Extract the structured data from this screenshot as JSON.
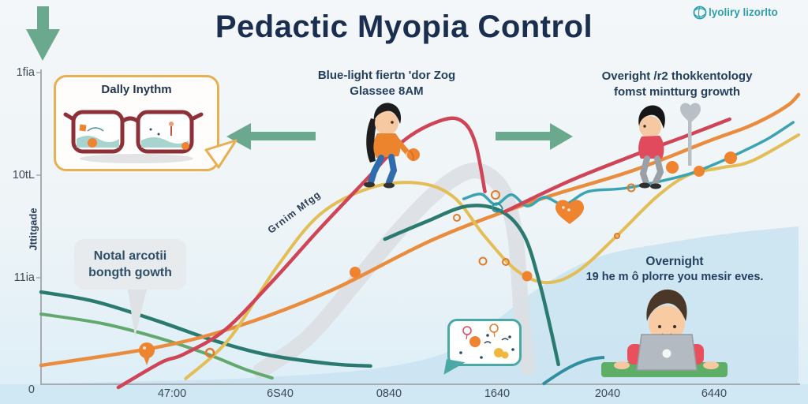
{
  "title": "Pedactic Myopia Control",
  "logo": {
    "text": "lyoliry lizorlto",
    "color": "#2f9fad"
  },
  "callout": {
    "title": "Dally Inythm"
  },
  "notes": {
    "center": [
      "Blue-light fiertn 'dor Zog",
      "Glassee 8AM"
    ],
    "right": [
      "Overight /r2 thokkentology",
      "fomst mintturg growth"
    ],
    "bubble": [
      "Notal arcotii",
      "bongth gowth"
    ],
    "overnight": [
      "Overnight",
      "19 he m ô plorre you mesir eves."
    ],
    "diagonal": "Grnim Mfgg"
  },
  "colors": {
    "accent_navy": "#1a2e4f",
    "arrow_green": "#6ba98e",
    "logo_teal": "#2f9fad",
    "callout_border": "#e7b052",
    "area_blue": "#cbe3f1"
  },
  "chart_data": {
    "type": "line",
    "title": "Pedactic Myopia Control",
    "y_axis_label": "Jttitgade",
    "y_ticks": [
      "1fia",
      "10tL",
      "11ia",
      "0"
    ],
    "x_ticks": [
      "47:00",
      "6S40",
      "0840",
      "1640",
      "2040",
      "6440"
    ],
    "grid": false,
    "legend": "none",
    "note": "x is fraction of plot width (0-1), value is percent of plot height above baseline (0-100)",
    "area": {
      "color": "#cbe3f1",
      "opacity": 0.9,
      "points": [
        [
          0,
          0
        ],
        [
          0.102,
          0.8
        ],
        [
          0.258,
          1.8
        ],
        [
          0.435,
          4.8
        ],
        [
          0.54,
          10.5
        ],
        [
          0.602,
          20.6
        ],
        [
          0.665,
          31.8
        ],
        [
          0.738,
          40.6
        ],
        [
          0.831,
          45.1
        ],
        [
          0.915,
          48.1
        ],
        [
          1,
          50.1
        ]
      ]
    },
    "series": [
      {
        "name": "gray-road-band",
        "color": "#dcdfe2",
        "width": 20,
        "opacity": 0.9,
        "points": [
          [
            0.29,
            4.3
          ],
          [
            0.352,
            14.8
          ],
          [
            0.415,
            32.3
          ],
          [
            0.467,
            47.4
          ],
          [
            0.514,
            59.4
          ],
          [
            0.555,
            66.7
          ],
          [
            0.583,
            67.4
          ],
          [
            0.61,
            61.4
          ],
          [
            0.625,
            48.9
          ],
          [
            0.631,
            33.8
          ],
          [
            0.635,
            18.8
          ],
          [
            0.642,
            5.5
          ]
        ]
      },
      {
        "name": "green-curve",
        "color": "#63a86e",
        "width": 4,
        "points": [
          [
            0,
            22.3
          ],
          [
            0.081,
            19.3
          ],
          [
            0.154,
            14.8
          ],
          [
            0.217,
            9.8
          ],
          [
            0.269,
            4.8
          ],
          [
            0.305,
            2.0
          ]
        ]
      },
      {
        "name": "dark-teal-left",
        "color": "#2a7a70",
        "width": 4.5,
        "points": [
          [
            0,
            29.3
          ],
          [
            0.071,
            26.3
          ],
          [
            0.154,
            20.1
          ],
          [
            0.227,
            14.0
          ],
          [
            0.3,
            9.3
          ],
          [
            0.383,
            6.5
          ],
          [
            0.435,
            5.8
          ]
        ]
      },
      {
        "name": "orange-line",
        "color": "#ea8c3e",
        "width": 4.5,
        "points": [
          [
            0,
            6.0
          ],
          [
            0.154,
            11.8
          ],
          [
            0.258,
            18.3
          ],
          [
            0.383,
            29.8
          ],
          [
            0.519,
            46.1
          ],
          [
            0.654,
            58.4
          ],
          [
            0.779,
            67.7
          ],
          [
            0.883,
            77.4
          ],
          [
            0.93,
            81.5
          ],
          [
            0.961,
            85.0
          ],
          [
            0.988,
            89.0
          ],
          [
            1,
            92.0
          ]
        ]
      },
      {
        "name": "yellow-curve",
        "color": "#e3bd55",
        "width": 4,
        "points": [
          [
            0.191,
            1.8
          ],
          [
            0.248,
            14.3
          ],
          [
            0.31,
            36.8
          ],
          [
            0.368,
            53.9
          ],
          [
            0.435,
            62.4
          ],
          [
            0.498,
            63.9
          ],
          [
            0.545,
            59.4
          ],
          [
            0.586,
            46.9
          ],
          [
            0.628,
            36.1
          ],
          [
            0.667,
            32.3
          ],
          [
            0.708,
            35.8
          ],
          [
            0.76,
            47.1
          ],
          [
            0.813,
            59.6
          ],
          [
            0.854,
            66.4
          ],
          [
            0.896,
            68.7
          ],
          [
            0.938,
            70.9
          ],
          [
            1,
            79.2
          ]
        ]
      },
      {
        "name": "teal-wavy-line",
        "color": "#3ba4b4",
        "width": 3.5,
        "points": [
          [
            0.558,
            58.9
          ],
          [
            0.581,
            60.4
          ],
          [
            0.6,
            57.1
          ],
          [
            0.621,
            60.2
          ],
          [
            0.642,
            56.6
          ],
          [
            0.665,
            59.4
          ],
          [
            0.691,
            57.1
          ],
          [
            0.722,
            61.2
          ],
          [
            0.769,
            62.2
          ],
          [
            0.816,
            64.4
          ],
          [
            0.857,
            66.9
          ],
          [
            0.894,
            70.4
          ],
          [
            0.93,
            74.4
          ],
          [
            0.961,
            78.2
          ],
          [
            0.993,
            83.2
          ]
        ]
      },
      {
        "name": "dark-teal-mid",
        "color": "#2a7a70",
        "width": 4.5,
        "points": [
          [
            0.454,
            46.1
          ],
          [
            0.508,
            51.6
          ],
          [
            0.563,
            56.6
          ],
          [
            0.608,
            54.9
          ],
          [
            0.638,
            47.1
          ],
          [
            0.658,
            32.3
          ],
          [
            0.673,
            17.3
          ],
          [
            0.683,
            6.3
          ]
        ]
      },
      {
        "name": "crimson-curve",
        "color": "#cf4456",
        "width": 4.5,
        "points": [
          [
            0.102,
            -1.0
          ],
          [
            0.159,
            7.0
          ],
          [
            0.188,
            9.5
          ],
          [
            0.243,
            17.3
          ],
          [
            0.305,
            32.6
          ],
          [
            0.368,
            49.4
          ],
          [
            0.427,
            64.4
          ],
          [
            0.479,
            77.4
          ],
          [
            0.527,
            83.7
          ],
          [
            0.555,
            83.7
          ],
          [
            0.573,
            76.9
          ],
          [
            0.586,
            61.2
          ]
        ]
      },
      {
        "name": "crimson-right-line",
        "color": "#cf4456",
        "width": 4.5,
        "points": [
          [
            0.613,
            54.9
          ],
          [
            0.696,
            64.4
          ],
          [
            0.779,
            72.4
          ],
          [
            0.852,
            78.9
          ],
          [
            0.909,
            84.2
          ]
        ]
      }
    ]
  }
}
